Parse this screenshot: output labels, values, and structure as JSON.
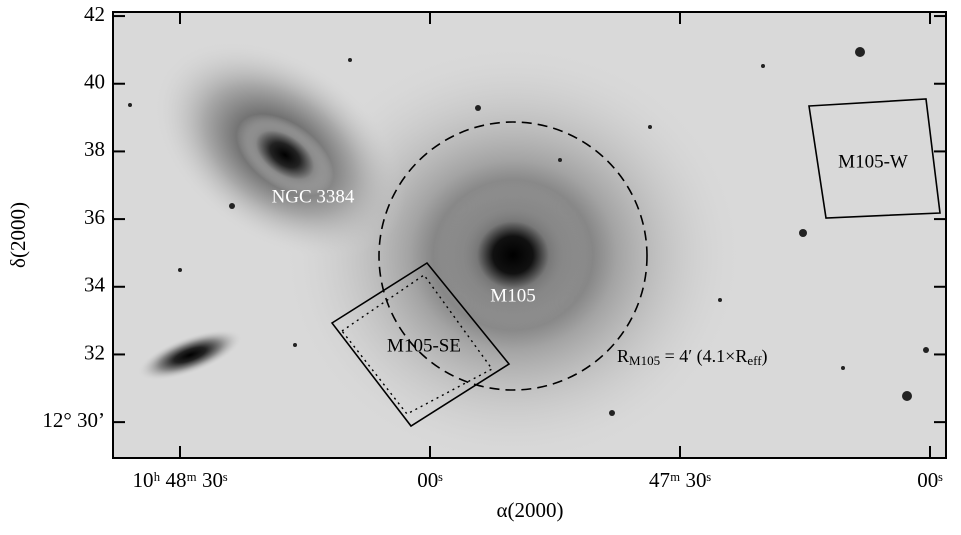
{
  "chart_data": {
    "type": "image",
    "x_label": "α(2000)",
    "y_label": "δ(2000)",
    "xlim": [
      2918.04,
      2818.08
    ],
    "xticks": [
      {
        "value": 2910,
        "label": "10ʰ 48ᵐ 30ˢ"
      },
      {
        "value": 2880,
        "label": "00ˢ"
      },
      {
        "value": 2850,
        "label": "47ᵐ 30ˢ"
      },
      {
        "value": 2820,
        "label": "00ˢ"
      }
    ],
    "ylim": [
      28.94,
      42.12
    ],
    "yticks": [
      {
        "value": 30,
        "label": "12° 30’"
      },
      32,
      34,
      36,
      38,
      40,
      42
    ],
    "annotations": [
      "NGC 3384",
      "M105",
      "M105-SE",
      "M105-W"
    ],
    "radius_label": [
      "R",
      "M105",
      " = 4′ (4.1×R",
      "eff",
      ")"
    ]
  }
}
